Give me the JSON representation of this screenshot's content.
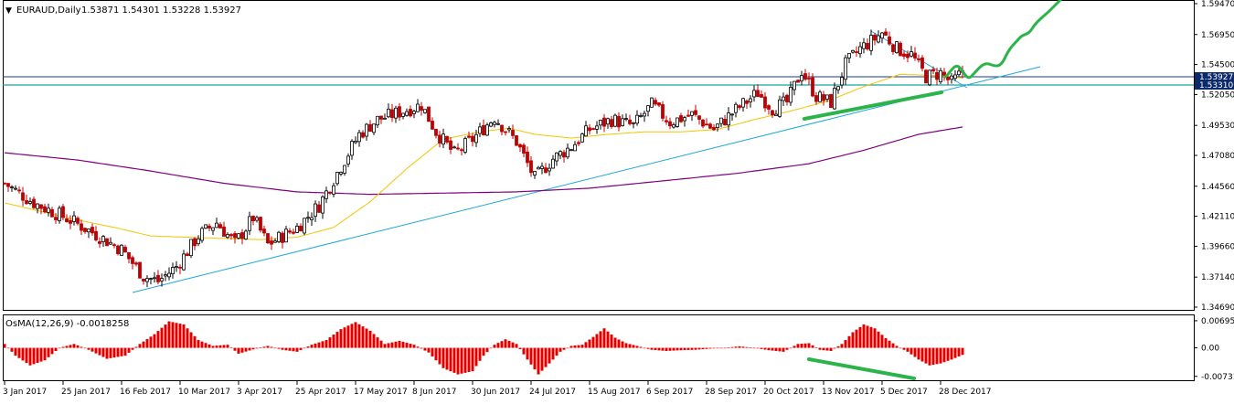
{
  "chart_header": {
    "symbol_arrow": "▼",
    "title": "EURAUD,Daily",
    "ohlc": "1.53871 1.54301 1.53228 1.53927"
  },
  "indicator_header": {
    "title": "OsMA(12,26,9) -0.0018258"
  },
  "price_badges": {
    "upper": "1.53927",
    "lower": "1.53310",
    "upper_color": "#0b2a6b",
    "lower_color": "#0b2a6b"
  },
  "colors": {
    "frame": "#000000",
    "bull": "#000000",
    "bear": "#c00000",
    "ma_fast": "#f5c400",
    "ma_slow": "#800080",
    "trendline": "#1ea7d8",
    "hline": "#1aa39a",
    "highlight": "#2bb44a",
    "osma": "#e00000"
  },
  "chart_data": [
    {
      "type": "candlestick",
      "title": "EURAUD,Daily",
      "ylim": [
        1.3469,
        1.5947
      ],
      "y_ticks": [
        "1.59470",
        "1.56950",
        "1.54500",
        "1.52050",
        "1.49530",
        "1.47080",
        "1.44560",
        "1.42110",
        "1.39660",
        "1.37140",
        "1.34690"
      ],
      "x_ticks": [
        "3 Jan 2017",
        "25 Jan 2017",
        "16 Feb 2017",
        "10 Mar 2017",
        "3 Apr 2017",
        "25 Apr 2017",
        "17 May 2017",
        "8 Jun 2017",
        "30 Jun 2017",
        "24 Jul 2017",
        "15 Aug 2017",
        "6 Sep 2017",
        "28 Sep 2017",
        "20 Oct 2017",
        "13 Nov 2017",
        "5 Dec 2017",
        "28 Dec 2017"
      ],
      "price_path_anchors": [
        [
          0,
          1.448
        ],
        [
          8,
          1.432
        ],
        [
          18,
          1.418
        ],
        [
          24,
          1.408
        ],
        [
          32,
          1.394
        ],
        [
          38,
          1.372
        ],
        [
          42,
          1.368
        ],
        [
          47,
          1.38
        ],
        [
          53,
          1.405
        ],
        [
          58,
          1.416
        ],
        [
          63,
          1.399
        ],
        [
          68,
          1.42
        ],
        [
          72,
          1.398
        ],
        [
          80,
          1.412
        ],
        [
          86,
          1.43
        ],
        [
          92,
          1.462
        ],
        [
          97,
          1.488
        ],
        [
          102,
          1.5
        ],
        [
          108,
          1.506
        ],
        [
          114,
          1.512
        ],
        [
          118,
          1.49
        ],
        [
          123,
          1.472
        ],
        [
          128,
          1.484
        ],
        [
          134,
          1.502
        ],
        [
          140,
          1.482
        ],
        [
          145,
          1.452
        ],
        [
          150,
          1.468
        ],
        [
          155,
          1.478
        ],
        [
          160,
          1.492
        ],
        [
          166,
          1.5
        ],
        [
          172,
          1.495
        ],
        [
          177,
          1.512
        ],
        [
          182,
          1.498
        ],
        [
          188,
          1.504
        ],
        [
          194,
          1.492
        ],
        [
          200,
          1.508
        ],
        [
          206,
          1.522
        ],
        [
          210,
          1.509
        ],
        [
          214,
          1.514
        ],
        [
          218,
          1.54
        ],
        [
          222,
          1.519
        ],
        [
          226,
          1.514
        ],
        [
          230,
          1.545
        ],
        [
          234,
          1.558
        ],
        [
          238,
          1.566
        ],
        [
          240,
          1.571
        ],
        [
          244,
          1.558
        ],
        [
          248,
          1.553
        ],
        [
          252,
          1.535
        ],
        [
          256,
          1.538
        ],
        [
          259,
          1.53
        ],
        [
          262,
          1.539
        ]
      ]
    },
    {
      "type": "line",
      "name": "",
      "role": "ma_fast",
      "points": [
        [
          0,
          1.432
        ],
        [
          10,
          1.425
        ],
        [
          20,
          1.418
        ],
        [
          30,
          1.412
        ],
        [
          40,
          1.405
        ],
        [
          50,
          1.404
        ],
        [
          60,
          1.403
        ],
        [
          70,
          1.402
        ],
        [
          80,
          1.404
        ],
        [
          90,
          1.412
        ],
        [
          100,
          1.433
        ],
        [
          110,
          1.46
        ],
        [
          120,
          1.484
        ],
        [
          130,
          1.49
        ],
        [
          138,
          1.493
        ],
        [
          145,
          1.488
        ],
        [
          155,
          1.485
        ],
        [
          165,
          1.488
        ],
        [
          175,
          1.49
        ],
        [
          185,
          1.49
        ],
        [
          195,
          1.492
        ],
        [
          205,
          1.5
        ],
        [
          215,
          1.507
        ],
        [
          225,
          1.515
        ],
        [
          235,
          1.527
        ],
        [
          245,
          1.537
        ],
        [
          255,
          1.536
        ],
        [
          262,
          1.534
        ]
      ]
    },
    {
      "type": "line",
      "name": "",
      "role": "ma_slow",
      "points": [
        [
          0,
          1.473
        ],
        [
          20,
          1.467
        ],
        [
          40,
          1.458
        ],
        [
          60,
          1.448
        ],
        [
          80,
          1.441
        ],
        [
          100,
          1.439
        ],
        [
          120,
          1.44
        ],
        [
          140,
          1.441
        ],
        [
          160,
          1.444
        ],
        [
          180,
          1.45
        ],
        [
          200,
          1.456
        ],
        [
          220,
          1.464
        ],
        [
          235,
          1.475
        ],
        [
          250,
          1.488
        ],
        [
          262,
          1.494
        ]
      ]
    },
    {
      "type": "bar",
      "title": "OsMA(12,26,9) -0.0018258",
      "ylim": [
        -0.0076,
        0.0074
      ],
      "y_ticks": [
        "0.006951",
        "0.00",
        "-0.007313"
      ],
      "osma_anchors": [
        [
          0,
          0.001
        ],
        [
          3,
          -0.002
        ],
        [
          7,
          -0.0045
        ],
        [
          11,
          -0.0032
        ],
        [
          15,
          0.0
        ],
        [
          19,
          0.001
        ],
        [
          23,
          -0.0005
        ],
        [
          28,
          -0.0028
        ],
        [
          33,
          -0.002
        ],
        [
          37,
          0.001
        ],
        [
          41,
          0.0035
        ],
        [
          45,
          0.0068
        ],
        [
          49,
          0.006
        ],
        [
          53,
          0.002
        ],
        [
          57,
          0.0005
        ],
        [
          61,
          0.0008
        ],
        [
          64,
          -0.0015
        ],
        [
          68,
          -0.0004
        ],
        [
          72,
          0.0005
        ],
        [
          76,
          -0.0005
        ],
        [
          80,
          -0.001
        ],
        [
          84,
          0.0008
        ],
        [
          88,
          0.002
        ],
        [
          92,
          0.0048
        ],
        [
          96,
          0.0066
        ],
        [
          100,
          0.0044
        ],
        [
          104,
          0.001
        ],
        [
          108,
          0.0018
        ],
        [
          112,
          0.0008
        ],
        [
          116,
          -0.0012
        ],
        [
          120,
          -0.0052
        ],
        [
          124,
          -0.0068
        ],
        [
          128,
          -0.006
        ],
        [
          131,
          -0.002
        ],
        [
          134,
          0.0008
        ],
        [
          137,
          0.0022
        ],
        [
          140,
          0.001
        ],
        [
          143,
          -0.003
        ],
        [
          146,
          -0.0068
        ],
        [
          149,
          -0.004
        ],
        [
          152,
          -0.001
        ],
        [
          155,
          0.0005
        ],
        [
          158,
          0.0008
        ],
        [
          161,
          0.0028
        ],
        [
          164,
          0.005
        ],
        [
          167,
          0.0026
        ],
        [
          170,
          0.0012
        ],
        [
          173,
          0.0005
        ],
        [
          177,
          -0.0005
        ],
        [
          181,
          -0.0008
        ],
        [
          185,
          -0.0006
        ],
        [
          189,
          -0.0005
        ],
        [
          193,
          -0.0002
        ],
        [
          197,
          0.0
        ],
        [
          201,
          0.0004
        ],
        [
          205,
          0.0
        ],
        [
          209,
          -0.0006
        ],
        [
          213,
          -0.001
        ],
        [
          217,
          0.001
        ],
        [
          220,
          0.0012
        ],
        [
          223,
          -0.0005
        ],
        [
          226,
          -0.0008
        ],
        [
          229,
          0.001
        ],
        [
          232,
          0.004
        ],
        [
          235,
          0.006
        ],
        [
          238,
          0.005
        ],
        [
          241,
          0.0025
        ],
        [
          244,
          0.0005
        ],
        [
          247,
          -0.001
        ],
        [
          250,
          -0.003
        ],
        [
          253,
          -0.0045
        ],
        [
          256,
          -0.004
        ],
        [
          259,
          -0.003
        ],
        [
          262,
          -0.0018
        ]
      ]
    }
  ]
}
